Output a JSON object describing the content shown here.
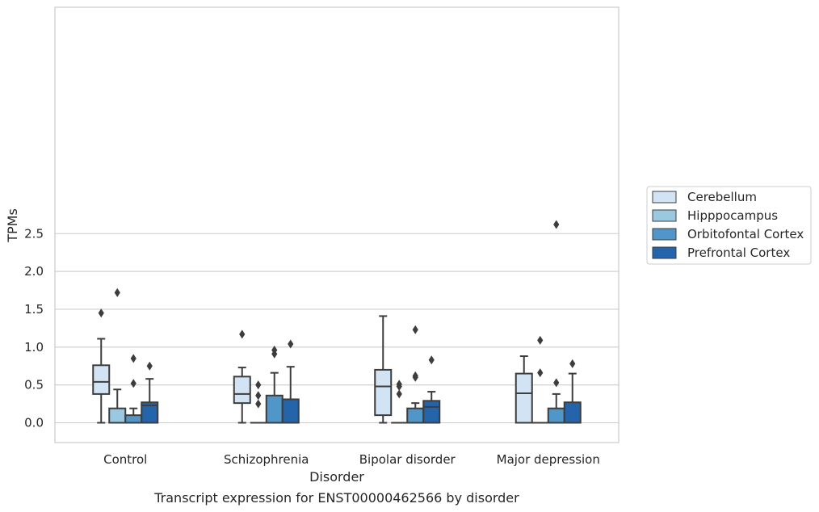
{
  "chart_data": {
    "type": "box",
    "title": "Transcript expression for ENST00000462566 by disorder",
    "xlabel": "Disorder",
    "ylabel": "TPMs",
    "ylim": [
      -0.13,
      2.76
    ],
    "yticks": [
      "0.0",
      "0.5",
      "1.0",
      "1.5",
      "2.0",
      "2.5"
    ],
    "ytick_values": [
      0.0,
      0.5,
      1.0,
      1.5,
      2.0,
      2.5
    ],
    "grid": true,
    "legend_position": "right",
    "categories": [
      "Control",
      "Schizophrenia",
      "Bipolar disorder",
      "Major depression"
    ],
    "series": [
      {
        "name": "Cerebellum",
        "color": "#d2e3f3",
        "boxes": [
          {
            "min": 0.0,
            "q1": 0.38,
            "median": 0.54,
            "q3": 0.76,
            "max": 1.11,
            "outliers": [
              1.45
            ]
          },
          {
            "min": 0.0,
            "q1": 0.26,
            "median": 0.38,
            "q3": 0.61,
            "max": 0.73,
            "outliers": [
              1.17
            ]
          },
          {
            "min": 0.0,
            "q1": 0.1,
            "median": 0.48,
            "q3": 0.7,
            "max": 1.41,
            "outliers": []
          },
          {
            "min": 0.0,
            "q1": 0.0,
            "median": 0.39,
            "q3": 0.65,
            "max": 0.88,
            "outliers": []
          }
        ]
      },
      {
        "name": "Hipppocampus",
        "color": "#9ac8e0",
        "boxes": [
          {
            "min": 0.0,
            "q1": 0.0,
            "median": 0.0,
            "q3": 0.19,
            "max": 0.44,
            "outliers": [
              1.72
            ]
          },
          {
            "min": 0.0,
            "q1": 0.0,
            "median": 0.0,
            "q3": 0.0,
            "max": 0.0,
            "outliers": [
              0.25,
              0.36,
              0.5
            ]
          },
          {
            "min": 0.0,
            "q1": 0.0,
            "median": 0.0,
            "q3": 0.0,
            "max": 0.0,
            "outliers": [
              0.38,
              0.48,
              0.51
            ]
          },
          {
            "min": 0.0,
            "q1": 0.0,
            "median": 0.0,
            "q3": 0.0,
            "max": 0.0,
            "outliers": [
              0.66,
              1.09
            ]
          }
        ]
      },
      {
        "name": "Orbitofontal Cortex",
        "color": "#5096c8",
        "boxes": [
          {
            "min": 0.0,
            "q1": 0.0,
            "median": 0.0,
            "q3": 0.1,
            "max": 0.19,
            "outliers": [
              0.52,
              0.85
            ]
          },
          {
            "min": 0.0,
            "q1": 0.0,
            "median": 0.0,
            "q3": 0.36,
            "max": 0.66,
            "outliers": [
              0.91,
              0.96
            ]
          },
          {
            "min": 0.0,
            "q1": 0.0,
            "median": 0.0,
            "q3": 0.19,
            "max": 0.26,
            "outliers": [
              0.6,
              0.62,
              1.23
            ]
          },
          {
            "min": 0.0,
            "q1": 0.0,
            "median": 0.0,
            "q3": 0.19,
            "max": 0.38,
            "outliers": [
              0.53,
              2.62
            ]
          }
        ]
      },
      {
        "name": "Prefrontal Cortex",
        "color": "#2364aa",
        "boxes": [
          {
            "min": 0.0,
            "q1": 0.0,
            "median": 0.23,
            "q3": 0.27,
            "max": 0.58,
            "outliers": [
              0.75
            ]
          },
          {
            "min": 0.0,
            "q1": 0.0,
            "median": 0.0,
            "q3": 0.31,
            "max": 0.74,
            "outliers": [
              1.04
            ]
          },
          {
            "min": 0.0,
            "q1": 0.0,
            "median": 0.21,
            "q3": 0.29,
            "max": 0.41,
            "outliers": [
              0.83
            ]
          },
          {
            "min": 0.0,
            "q1": 0.0,
            "median": 0.0,
            "q3": 0.27,
            "max": 0.65,
            "outliers": [
              0.78
            ]
          }
        ]
      }
    ]
  }
}
